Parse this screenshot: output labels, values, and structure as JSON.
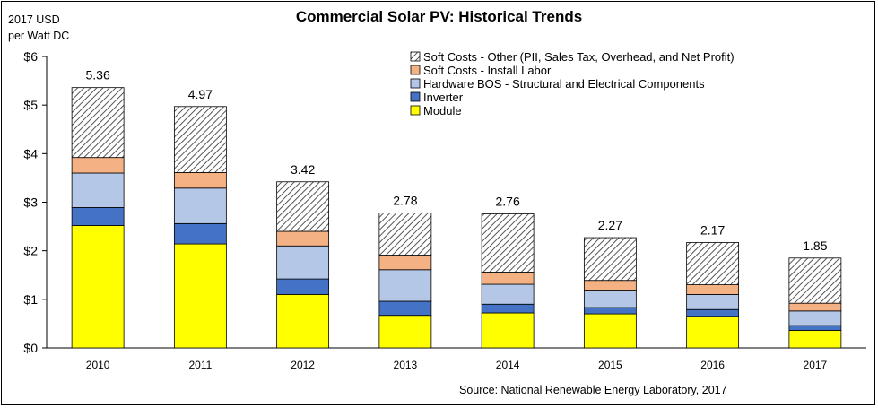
{
  "chart_data": {
    "type": "bar",
    "stacked": true,
    "title": "Commercial Solar PV: Historical Trends",
    "ylabel_lines": [
      "2017 USD",
      "per Watt DC"
    ],
    "ylim": [
      0,
      6
    ],
    "yticks": [
      0,
      1,
      2,
      3,
      4,
      5,
      6
    ],
    "ytick_labels": [
      "$0",
      "$1",
      "$2",
      "$3",
      "$4",
      "$5",
      "$6"
    ],
    "categories": [
      "2010",
      "2011",
      "2012",
      "2013",
      "2014",
      "2015",
      "2016",
      "2017"
    ],
    "totals": [
      5.36,
      4.97,
      3.42,
      2.78,
      2.76,
      2.27,
      2.17,
      1.85
    ],
    "total_labels": [
      "5.36",
      "4.97",
      "3.42",
      "2.78",
      "2.76",
      "2.27",
      "2.17",
      "1.85"
    ],
    "series": [
      {
        "name": "Module",
        "color": "#ffff00",
        "values": [
          2.52,
          2.14,
          1.1,
          0.67,
          0.72,
          0.7,
          0.65,
          0.36
        ]
      },
      {
        "name": "Inverter",
        "color": "#4472c4",
        "values": [
          0.37,
          0.42,
          0.32,
          0.29,
          0.18,
          0.13,
          0.14,
          0.1
        ]
      },
      {
        "name": "Hardware BOS - Structural and Electrical Components",
        "color": "#b4c7e7",
        "values": [
          0.71,
          0.73,
          0.68,
          0.65,
          0.41,
          0.36,
          0.31,
          0.3
        ]
      },
      {
        "name": "Soft Costs - Install Labor",
        "color": "#f4b183",
        "values": [
          0.32,
          0.32,
          0.3,
          0.3,
          0.25,
          0.2,
          0.2,
          0.16
        ]
      },
      {
        "name": "Soft Costs - Other (PII, Sales Tax, Overhead, and Net Profit)",
        "color": "#ffffff",
        "pattern": "hatch",
        "values": [
          1.44,
          1.36,
          1.02,
          0.87,
          1.2,
          0.88,
          0.87,
          0.93
        ]
      }
    ],
    "legend": {
      "position": "top-right",
      "order": [
        "Soft Costs - Other (PII, Sales Tax, Overhead, and Net Profit)",
        "Soft Costs - Install Labor",
        "Hardware BOS - Structural and Electrical Components",
        "Inverter",
        "Module"
      ]
    },
    "grid": false,
    "source": "Source: National Renewable Energy Laboratory, 2017"
  }
}
